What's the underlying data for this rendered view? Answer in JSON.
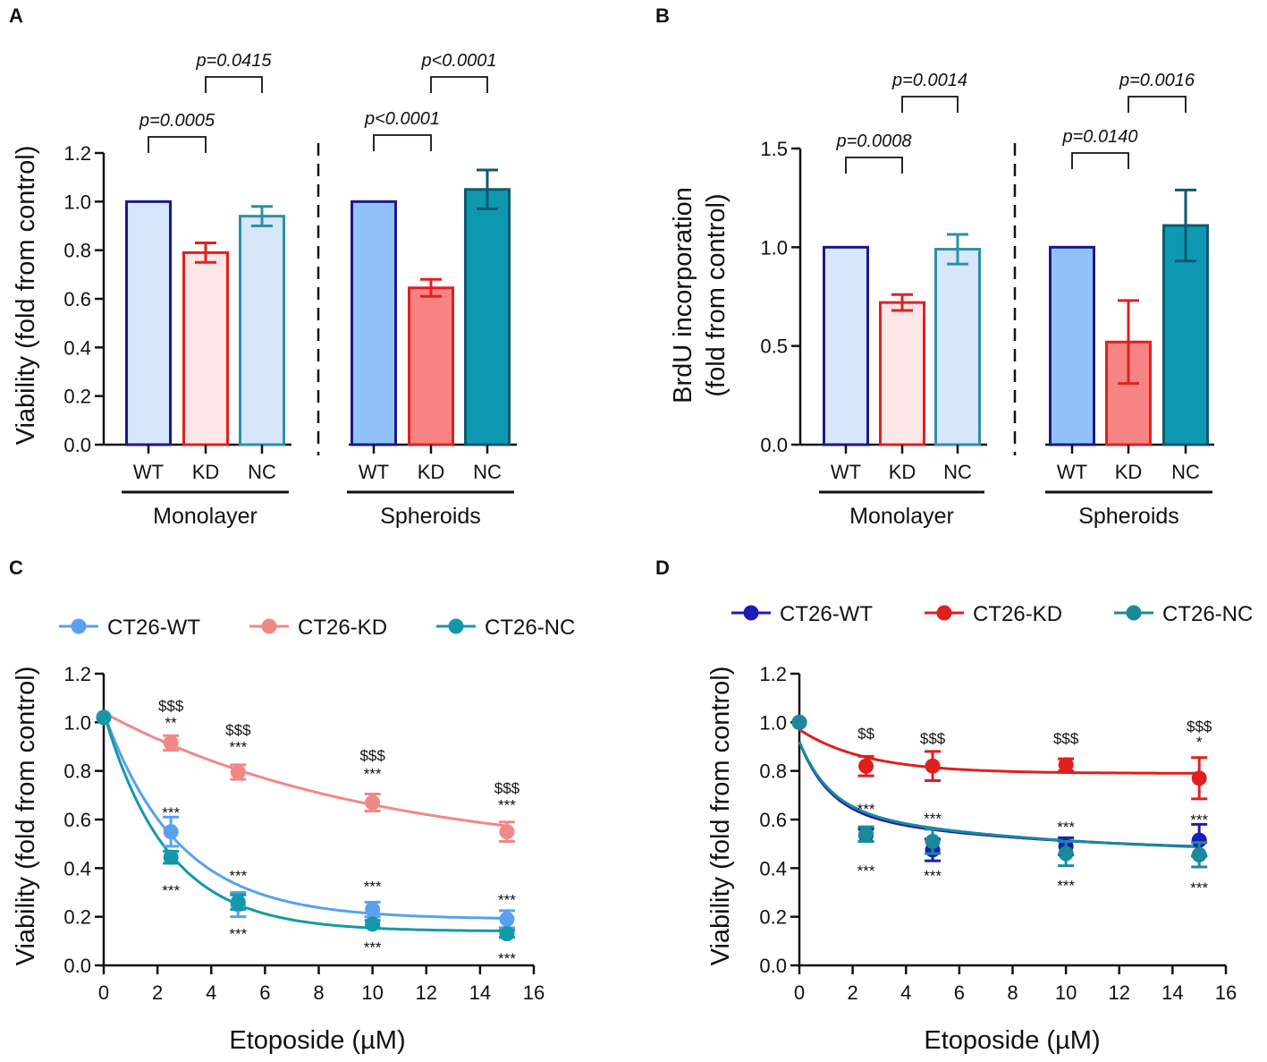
{
  "chart_data": [
    {
      "panel": "A",
      "type": "bar",
      "ylabel": "Viability (fold from control)",
      "ylim": [
        0,
        1.2
      ],
      "yticks": [
        "0.0",
        "0.2",
        "0.4",
        "0.6",
        "0.8",
        "1.0",
        "1.2"
      ],
      "groups": [
        {
          "name": "Monolayer",
          "bars": [
            {
              "label": "WT",
              "value": 1.0,
              "err": 0,
              "fill": "#d6e7fb",
              "stroke": "#1a1a8a"
            },
            {
              "label": "KD",
              "value": 0.79,
              "err": 0.04,
              "fill": "#fde6e6",
              "stroke": "#e02020"
            },
            {
              "label": "NC",
              "value": 0.94,
              "err": 0.04,
              "fill": "#d6e7fb",
              "stroke": "#2d8fa8"
            }
          ]
        },
        {
          "name": "Spheroids",
          "bars": [
            {
              "label": "WT",
              "value": 1.0,
              "err": 0,
              "fill": "#91c2f7",
              "stroke": "#1a1a8a"
            },
            {
              "label": "KD",
              "value": 0.645,
              "err": 0.035,
              "fill": "#f78383",
              "stroke": "#e02020"
            },
            {
              "label": "NC",
              "value": 1.05,
              "err": 0.08,
              "fill": "#0f98b2",
              "stroke": "#0c5a6e"
            }
          ]
        }
      ],
      "comparisons": [
        {
          "group": 0,
          "from": 0,
          "to": 1,
          "label": "p=0.0005"
        },
        {
          "group": 0,
          "from": 1,
          "to": 2,
          "label": "p=0.0415"
        },
        {
          "group": 1,
          "from": 0,
          "to": 1,
          "label": "p<0.0001"
        },
        {
          "group": 1,
          "from": 1,
          "to": 2,
          "label": "p<0.0001"
        }
      ]
    },
    {
      "panel": "B",
      "type": "bar",
      "ylabel": [
        "BrdU incorporation",
        "(fold from control)"
      ],
      "ylim": [
        0,
        1.5
      ],
      "yticks": [
        "0.0",
        "0.5",
        "1.0",
        "1.5"
      ],
      "groups": [
        {
          "name": "Monolayer",
          "bars": [
            {
              "label": "WT",
              "value": 1.0,
              "err": 0,
              "fill": "#d6e7fb",
              "stroke": "#1a1a8a"
            },
            {
              "label": "KD",
              "value": 0.72,
              "err": 0.04,
              "fill": "#fde6e6",
              "stroke": "#e02020"
            },
            {
              "label": "NC",
              "value": 0.99,
              "err": 0.075,
              "fill": "#d6e7fb",
              "stroke": "#2d8fa8"
            }
          ]
        },
        {
          "name": "Spheroids",
          "bars": [
            {
              "label": "WT",
              "value": 1.0,
              "err": 0,
              "fill": "#91c2f7",
              "stroke": "#1a1a8a"
            },
            {
              "label": "KD",
              "value": 0.52,
              "err": 0.21,
              "fill": "#f78383",
              "stroke": "#e02020"
            },
            {
              "label": "NC",
              "value": 1.11,
              "err": 0.18,
              "fill": "#0f98b2",
              "stroke": "#0c5a6e"
            }
          ]
        }
      ],
      "comparisons": [
        {
          "group": 0,
          "from": 0,
          "to": 1,
          "label": "p=0.0008"
        },
        {
          "group": 0,
          "from": 1,
          "to": 2,
          "label": "p=0.0014"
        },
        {
          "group": 1,
          "from": 0,
          "to": 1,
          "label": "p=0.0140"
        },
        {
          "group": 1,
          "from": 1,
          "to": 2,
          "label": "p=0.0016"
        }
      ]
    },
    {
      "panel": "C",
      "type": "line",
      "xlabel": "Etoposide (µM)",
      "ylabel": "Viability (fold from control)",
      "xlim": [
        0,
        16
      ],
      "ylim": [
        0,
        1.2
      ],
      "xticks": [
        "0",
        "2",
        "4",
        "6",
        "8",
        "10",
        "12",
        "14",
        "16"
      ],
      "yticks": [
        "0.0",
        "0.2",
        "0.4",
        "0.6",
        "0.8",
        "1.0",
        "1.2"
      ],
      "series": [
        {
          "name": "CT26-WT",
          "color": "#5aa0ee",
          "x": [
            0,
            2.5,
            5,
            10,
            15
          ],
          "y": [
            1.02,
            0.55,
            0.25,
            0.23,
            0.19
          ],
          "err": [
            0.0,
            0.06,
            0.05,
            0.03,
            0.035
          ],
          "fit": {
            "bottom": 0.19,
            "top": 1.04,
            "k": 0.36
          }
        },
        {
          "name": "CT26-KD",
          "color": "#f08888",
          "x": [
            0,
            2.5,
            5,
            10,
            15
          ],
          "y": [
            1.02,
            0.915,
            0.795,
            0.67,
            0.55
          ],
          "err": [
            0.0,
            0.03,
            0.03,
            0.035,
            0.04
          ],
          "fit": {
            "bottom": 0.44,
            "top": 1.04,
            "k": 0.1
          }
        },
        {
          "name": "CT26-NC",
          "color": "#1498a8",
          "x": [
            0,
            2.5,
            5,
            10,
            15
          ],
          "y": [
            1.02,
            0.445,
            0.26,
            0.17,
            0.13
          ],
          "err": [
            0.0,
            0.025,
            0.03,
            0.015,
            0.015
          ],
          "fit": {
            "bottom": 0.14,
            "top": 1.04,
            "k": 0.42
          }
        }
      ],
      "annotations": [
        {
          "x": 2.5,
          "y": 1.07,
          "text": "$$$"
        },
        {
          "x": 2.5,
          "y": 1.0,
          "text": "**"
        },
        {
          "x": 5,
          "y": 0.97,
          "text": "$$$"
        },
        {
          "x": 5,
          "y": 0.9,
          "text": "***"
        },
        {
          "x": 10,
          "y": 0.865,
          "text": "$$$"
        },
        {
          "x": 10,
          "y": 0.79,
          "text": "***"
        },
        {
          "x": 15,
          "y": 0.73,
          "text": "$$$"
        },
        {
          "x": 15,
          "y": 0.66,
          "text": "***"
        },
        {
          "x": 2.5,
          "y": 0.63,
          "text": "***"
        },
        {
          "x": 2.5,
          "y": 0.31,
          "text": "***"
        },
        {
          "x": 5,
          "y": 0.37,
          "text": "***"
        },
        {
          "x": 5,
          "y": 0.13,
          "text": "***"
        },
        {
          "x": 10,
          "y": 0.325,
          "text": "***"
        },
        {
          "x": 10,
          "y": 0.075,
          "text": "***"
        },
        {
          "x": 15,
          "y": 0.27,
          "text": "***"
        },
        {
          "x": 15,
          "y": 0.03,
          "text": "***"
        }
      ]
    },
    {
      "panel": "D",
      "type": "line",
      "xlabel": "Etoposide (µM)",
      "ylabel": "Viability (fold from control)",
      "xlim": [
        0,
        16
      ],
      "ylim": [
        0,
        1.2
      ],
      "xticks": [
        "0",
        "2",
        "4",
        "6",
        "8",
        "10",
        "12",
        "14",
        "16"
      ],
      "yticks": [
        "0.0",
        "0.2",
        "0.4",
        "0.6",
        "0.8",
        "1.0",
        "1.2"
      ],
      "series": [
        {
          "name": "CT26-WT",
          "color": "#1c1cb8",
          "x": [
            0,
            2.5,
            5,
            10,
            15
          ],
          "y": [
            1.0,
            0.535,
            0.475,
            0.49,
            0.515
          ],
          "err": [
            0.0,
            0.025,
            0.045,
            0.035,
            0.065
          ],
          "fit": {
            "bottom": 0.46,
            "top": 0.92,
            "k": 0.9,
            "r": 0.62
          }
        },
        {
          "name": "CT26-KD",
          "color": "#e01e1e",
          "x": [
            0,
            2.5,
            5,
            10,
            15
          ],
          "y": [
            1.0,
            0.82,
            0.82,
            0.825,
            0.77
          ],
          "err": [
            0.0,
            0.04,
            0.06,
            0.025,
            0.085
          ],
          "fit": {
            "bottom": 0.79,
            "top": 0.97,
            "k": 0.4
          }
        },
        {
          "name": "CT26-NC",
          "color": "#1a8a9a",
          "x": [
            0,
            2.5,
            5,
            10,
            15
          ],
          "y": [
            1.0,
            0.54,
            0.51,
            0.46,
            0.455
          ],
          "err": [
            0.0,
            0.03,
            0.05,
            0.05,
            0.05
          ],
          "fit": {
            "bottom": 0.455,
            "top": 0.92,
            "k": 0.9,
            "r": 0.58
          }
        }
      ],
      "annotations": [
        {
          "x": 2.5,
          "y": 0.955,
          "text": "$$"
        },
        {
          "x": 5,
          "y": 0.935,
          "text": "$$$"
        },
        {
          "x": 10,
          "y": 0.935,
          "text": "$$$"
        },
        {
          "x": 15,
          "y": 0.985,
          "text": "$$$"
        },
        {
          "x": 15,
          "y": 0.92,
          "text": "*"
        },
        {
          "x": 2.5,
          "y": 0.645,
          "text": "***"
        },
        {
          "x": 5,
          "y": 0.605,
          "text": "***"
        },
        {
          "x": 10,
          "y": 0.57,
          "text": "***"
        },
        {
          "x": 15,
          "y": 0.6,
          "text": "***"
        },
        {
          "x": 2.5,
          "y": 0.39,
          "text": "***"
        },
        {
          "x": 5,
          "y": 0.37,
          "text": "***"
        },
        {
          "x": 10,
          "y": 0.33,
          "text": "***"
        },
        {
          "x": 15,
          "y": 0.32,
          "text": "***"
        }
      ]
    }
  ]
}
